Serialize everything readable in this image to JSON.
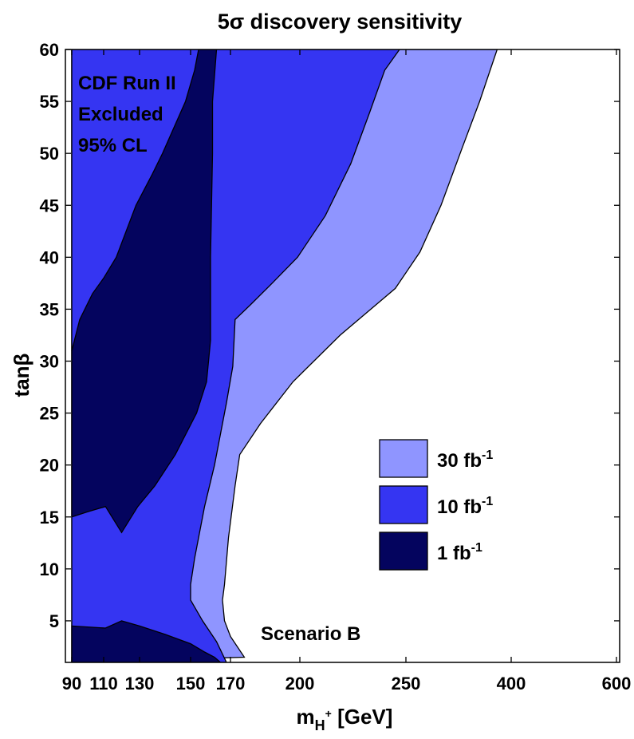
{
  "chart_data": {
    "type": "area",
    "title": "5σ discovery sensitivity",
    "xlabel": {
      "main": "m",
      "sub": "H",
      "sup": "+",
      "unit": " [GeV]"
    },
    "ylabel": "tanβ",
    "x_ticks": [
      90,
      110,
      130,
      150,
      170,
      200,
      250,
      400,
      600
    ],
    "y_ticks": [
      5,
      10,
      15,
      20,
      25,
      30,
      35,
      40,
      45,
      50,
      55,
      60
    ],
    "xlim": [
      90,
      600
    ],
    "ylim": [
      1,
      60
    ],
    "grid": false,
    "legend_position": "lower-right",
    "colors": {
      "excluded_fill": "#ffff00",
      "excluded_grid": "#ff6a4d",
      "lum_30": "#8f95ff",
      "lum_10": "#3535f2",
      "lum_1": "#04045e"
    },
    "excluded_region": {
      "lines": [
        "CDF Run II",
        "Excluded",
        "95% CL"
      ],
      "boundary": [
        {
          "x": 90,
          "y": 31
        },
        {
          "x": 95,
          "y": 34
        },
        {
          "x": 103,
          "y": 36.5
        },
        {
          "x": 110,
          "y": 38
        },
        {
          "x": 117,
          "y": 40
        },
        {
          "x": 128,
          "y": 45
        },
        {
          "x": 135,
          "y": 48
        },
        {
          "x": 139,
          "y": 50
        },
        {
          "x": 148,
          "y": 55
        },
        {
          "x": 152,
          "y": 58
        },
        {
          "x": 154,
          "y": 60
        }
      ]
    },
    "series": [
      {
        "name": "30 fb",
        "sup": "-1",
        "key": "lum_30",
        "boundary": [
          {
            "x": 176,
            "y": 1.5
          },
          {
            "x": 170,
            "y": 3.5
          },
          {
            "x": 167,
            "y": 5
          },
          {
            "x": 166,
            "y": 7
          },
          {
            "x": 167,
            "y": 8.5
          },
          {
            "x": 169,
            "y": 13
          },
          {
            "x": 172,
            "y": 18
          },
          {
            "x": 174,
            "y": 21
          },
          {
            "x": 183,
            "y": 24
          },
          {
            "x": 197,
            "y": 28
          },
          {
            "x": 219,
            "y": 32.5
          },
          {
            "x": 245,
            "y": 37
          },
          {
            "x": 270,
            "y": 40.5
          },
          {
            "x": 300,
            "y": 45
          },
          {
            "x": 330,
            "y": 50.5
          },
          {
            "x": 355,
            "y": 55
          },
          {
            "x": 370,
            "y": 58
          },
          {
            "x": 380,
            "y": 60
          }
        ]
      },
      {
        "name": "10 fb",
        "sup": "-1",
        "key": "lum_10",
        "boundary": [
          {
            "x": 168,
            "y": 1
          },
          {
            "x": 163,
            "y": 3
          },
          {
            "x": 156,
            "y": 5
          },
          {
            "x": 150,
            "y": 7
          },
          {
            "x": 150,
            "y": 8.5
          },
          {
            "x": 152,
            "y": 11
          },
          {
            "x": 155,
            "y": 14
          },
          {
            "x": 157,
            "y": 16
          },
          {
            "x": 162,
            "y": 20
          },
          {
            "x": 168,
            "y": 26
          },
          {
            "x": 171,
            "y": 29.5
          },
          {
            "x": 172,
            "y": 34
          },
          {
            "x": 179,
            "y": 35.5
          },
          {
            "x": 188,
            "y": 37.5
          },
          {
            "x": 199,
            "y": 40
          },
          {
            "x": 212,
            "y": 44
          },
          {
            "x": 224,
            "y": 49
          },
          {
            "x": 233,
            "y": 54
          },
          {
            "x": 240,
            "y": 58
          },
          {
            "x": 247,
            "y": 60
          }
        ]
      },
      {
        "name": "1 fb",
        "sup": "-1",
        "key": "lum_1",
        "upper_boundary": [
          {
            "x": 90,
            "y": 15
          },
          {
            "x": 100,
            "y": 15.5
          },
          {
            "x": 111,
            "y": 16
          },
          {
            "x": 120,
            "y": 13.5
          },
          {
            "x": 129,
            "y": 16
          },
          {
            "x": 136,
            "y": 18
          },
          {
            "x": 144,
            "y": 21
          },
          {
            "x": 153,
            "y": 25
          },
          {
            "x": 158,
            "y": 28
          },
          {
            "x": 160,
            "y": 32
          },
          {
            "x": 160,
            "y": 40
          },
          {
            "x": 161,
            "y": 50
          },
          {
            "x": 161,
            "y": 55
          },
          {
            "x": 163,
            "y": 60
          }
        ],
        "lower_region": [
          {
            "x": 90,
            "y": 4.5
          },
          {
            "x": 111,
            "y": 4.3
          },
          {
            "x": 120,
            "y": 5
          },
          {
            "x": 130,
            "y": 4.5
          },
          {
            "x": 140,
            "y": 3.7
          },
          {
            "x": 150,
            "y": 2.8
          },
          {
            "x": 157,
            "y": 2
          },
          {
            "x": 162,
            "y": 1.5
          },
          {
            "x": 165,
            "y": 1
          }
        ]
      }
    ],
    "annotations": [
      "Scenario B"
    ]
  }
}
